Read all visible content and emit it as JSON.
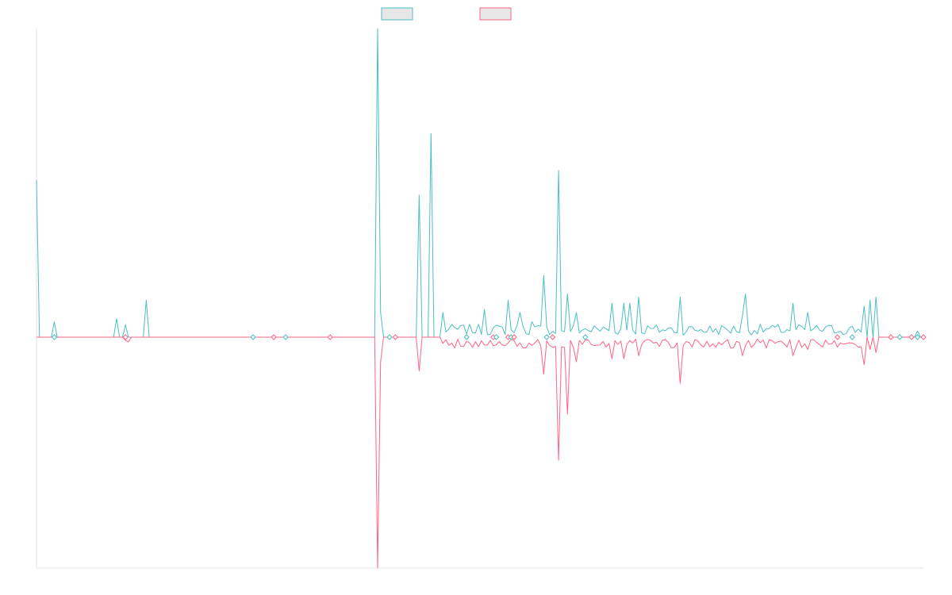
{
  "chart_data": {
    "type": "line",
    "title": "",
    "xlabel": "",
    "ylabel": "",
    "grid": false,
    "legend_position": "top-center",
    "n_points": 300,
    "ylim": [
      -1,
      1
    ],
    "series": [
      {
        "color": "#4bc0c0",
        "legend_fill": "#e7e7e7",
        "peaks": [
          [
            0,
            0.51
          ],
          [
            6,
            0.05
          ],
          [
            27,
            0.06
          ],
          [
            30,
            0.04
          ],
          [
            37,
            0.12
          ],
          [
            115,
            1.0
          ],
          [
            116,
            0.08
          ],
          [
            129,
            0.46
          ],
          [
            133,
            0.66
          ],
          [
            137,
            0.08
          ],
          [
            151,
            0.09
          ],
          [
            159,
            0.12
          ],
          [
            163,
            0.08
          ],
          [
            167,
            0.05
          ],
          [
            171,
            0.2
          ],
          [
            176,
            0.54
          ],
          [
            179,
            0.14
          ],
          [
            182,
            0.08
          ],
          [
            194,
            0.11
          ],
          [
            198,
            0.11
          ],
          [
            200,
            0.11
          ],
          [
            203,
            0.13
          ],
          [
            217,
            0.13
          ],
          [
            238,
            0.07
          ],
          [
            239,
            0.14
          ],
          [
            255,
            0.11
          ],
          [
            260,
            0.08
          ],
          [
            279,
            0.1
          ],
          [
            281,
            0.12
          ],
          [
            283,
            0.13
          ],
          [
            297,
            0.02
          ]
        ],
        "noise": {
          "from": 137,
          "to": 278,
          "amp": 0.035
        }
      },
      {
        "color": "#ff6384",
        "legend_fill": "#e7e7e7",
        "peaks": [
          [
            30,
            -0.01
          ],
          [
            31,
            -0.015
          ],
          [
            115,
            -0.75
          ],
          [
            116,
            -0.08
          ],
          [
            129,
            -0.11
          ],
          [
            137,
            -0.02
          ],
          [
            171,
            -0.12
          ],
          [
            176,
            -0.4
          ],
          [
            179,
            -0.25
          ],
          [
            182,
            -0.08
          ],
          [
            194,
            -0.07
          ],
          [
            198,
            -0.07
          ],
          [
            203,
            -0.06
          ],
          [
            217,
            -0.15
          ],
          [
            238,
            -0.06
          ],
          [
            255,
            -0.06
          ],
          [
            260,
            -0.04
          ],
          [
            279,
            -0.09
          ],
          [
            281,
            -0.04
          ],
          [
            283,
            -0.05
          ]
        ],
        "noise": {
          "from": 137,
          "to": 278,
          "amp": 0.03
        }
      }
    ],
    "marker_indices": [
      6,
      30,
      73,
      80,
      84,
      99,
      119,
      121,
      145,
      154,
      155,
      159,
      160,
      161,
      172,
      174,
      185,
      270,
      275,
      288,
      291,
      295,
      297,
      299
    ]
  }
}
